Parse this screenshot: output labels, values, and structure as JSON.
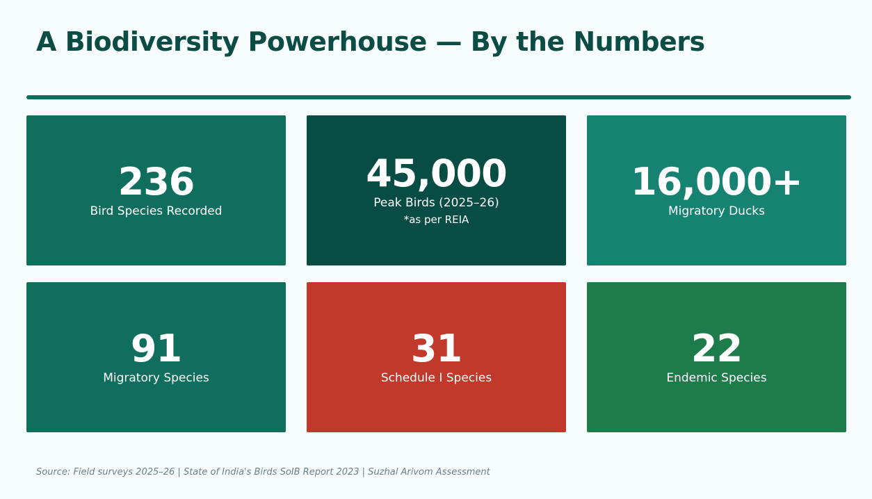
{
  "title": "A Biodiversity Powerhouse — By the Numbers",
  "cards": [
    {
      "value": "236",
      "label": "Bird Species Recorded",
      "note": "",
      "color": "#0f6f5c"
    },
    {
      "value": "45,000",
      "label": "Peak Birds (2025–26)",
      "note": "*as per REIA",
      "color": "#084d44"
    },
    {
      "value": "16,000+",
      "label": "Migratory Ducks",
      "note": "",
      "color": "#158272"
    },
    {
      "value": "91",
      "label": "Migratory Species",
      "note": "",
      "color": "#0f6f5c"
    },
    {
      "value": "31",
      "label": "Schedule I Species",
      "note": "",
      "color": "#c0392b"
    },
    {
      "value": "22",
      "label": "Endemic Species",
      "note": "",
      "color": "#1e7c4b"
    }
  ],
  "source": "Source: Field surveys 2025–26 | State of India's Birds SoIB Report 2023 | Suzhal Arivom Assessment"
}
